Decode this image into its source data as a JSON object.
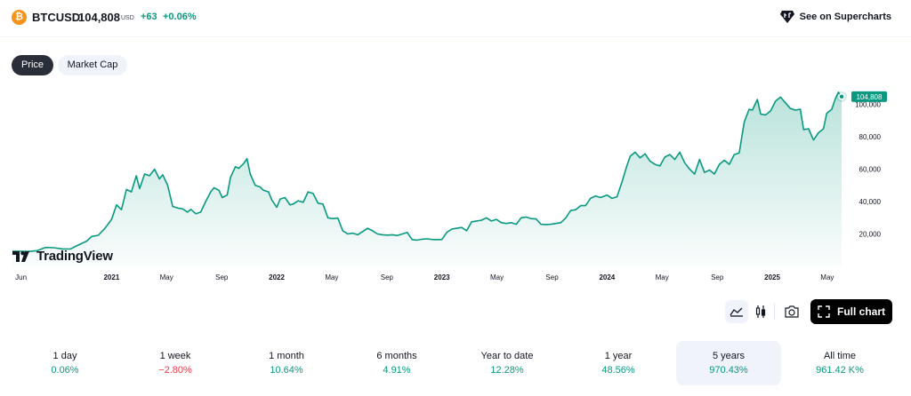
{
  "header": {
    "symbol": "BTCUSD",
    "price": "104,808",
    "currency": "USD",
    "change": "+63",
    "change_pct": "+0.06%",
    "supercharts": "See on Supercharts"
  },
  "tabs": [
    {
      "label": "Price",
      "active": true
    },
    {
      "label": "Market Cap",
      "active": false
    }
  ],
  "brand": {
    "text": "TradingView"
  },
  "toolbar": {
    "full_chart": "Full chart"
  },
  "colors": {
    "line": "#089981",
    "positive": "#089981",
    "negative": "#f23645",
    "brand_orange": "#f7931a"
  },
  "periods": [
    {
      "label": "1 day",
      "value": "0.06%",
      "sign": "pos",
      "active": false
    },
    {
      "label": "1 week",
      "value": "−2.80%",
      "sign": "neg",
      "active": false
    },
    {
      "label": "1 month",
      "value": "10.64%",
      "sign": "pos",
      "active": false
    },
    {
      "label": "6 months",
      "value": "4.91%",
      "sign": "pos",
      "active": false
    },
    {
      "label": "Year to date",
      "value": "12.28%",
      "sign": "pos",
      "active": false
    },
    {
      "label": "1 year",
      "value": "48.56%",
      "sign": "pos",
      "active": false
    },
    {
      "label": "5 years",
      "value": "970.43%",
      "sign": "pos",
      "active": true
    },
    {
      "label": "All time",
      "value": "961.42 K%",
      "sign": "pos",
      "active": false
    }
  ],
  "chart_data": {
    "type": "area",
    "series": [
      {
        "name": "BTCUSD",
        "last_label": "104,808"
      }
    ],
    "x_ticks": [
      {
        "label": "Jun",
        "t": 2020.417,
        "bold": false
      },
      {
        "label": "2021",
        "t": 2021.0,
        "bold": true
      },
      {
        "label": "May",
        "t": 2021.333,
        "bold": false
      },
      {
        "label": "Sep",
        "t": 2021.667,
        "bold": false
      },
      {
        "label": "2022",
        "t": 2022.0,
        "bold": true
      },
      {
        "label": "May",
        "t": 2022.333,
        "bold": false
      },
      {
        "label": "Sep",
        "t": 2022.667,
        "bold": false
      },
      {
        "label": "2023",
        "t": 2023.0,
        "bold": true
      },
      {
        "label": "May",
        "t": 2023.333,
        "bold": false
      },
      {
        "label": "Sep",
        "t": 2023.667,
        "bold": false
      },
      {
        "label": "2024",
        "t": 2024.0,
        "bold": true
      },
      {
        "label": "May",
        "t": 2024.333,
        "bold": false
      },
      {
        "label": "Sep",
        "t": 2024.667,
        "bold": false
      },
      {
        "label": "2025",
        "t": 2025.0,
        "bold": true
      },
      {
        "label": "May",
        "t": 2025.333,
        "bold": false
      }
    ],
    "y_ticks": [
      {
        "label": "20,000",
        "v": 20000
      },
      {
        "label": "40,000",
        "v": 40000
      },
      {
        "label": "60,000",
        "v": 60000
      },
      {
        "label": "80,000",
        "v": 80000
      },
      {
        "label": "100,000",
        "v": 100000
      }
    ],
    "ylim": [
      0,
      108000
    ],
    "xlim": [
      2020.4,
      2025.42
    ],
    "points": [
      [
        2020.4,
        9400
      ],
      [
        2020.45,
        9300
      ],
      [
        2020.5,
        9200
      ],
      [
        2020.55,
        9700
      ],
      [
        2020.6,
        11700
      ],
      [
        2020.65,
        11500
      ],
      [
        2020.7,
        10800
      ],
      [
        2020.75,
        10700
      ],
      [
        2020.8,
        13200
      ],
      [
        2020.85,
        15600
      ],
      [
        2020.88,
        18500
      ],
      [
        2020.92,
        19200
      ],
      [
        2020.96,
        23500
      ],
      [
        2021.0,
        29000
      ],
      [
        2021.03,
        38000
      ],
      [
        2021.06,
        35000
      ],
      [
        2021.09,
        47500
      ],
      [
        2021.12,
        46000
      ],
      [
        2021.15,
        56000
      ],
      [
        2021.17,
        48000
      ],
      [
        2021.2,
        57000
      ],
      [
        2021.23,
        56000
      ],
      [
        2021.26,
        60000
      ],
      [
        2021.29,
        54000
      ],
      [
        2021.31,
        56500
      ],
      [
        2021.34,
        50000
      ],
      [
        2021.37,
        37000
      ],
      [
        2021.4,
        36000
      ],
      [
        2021.43,
        35500
      ],
      [
        2021.46,
        33500
      ],
      [
        2021.48,
        35200
      ],
      [
        2021.51,
        32500
      ],
      [
        2021.54,
        33500
      ],
      [
        2021.57,
        40000
      ],
      [
        2021.6,
        46000
      ],
      [
        2021.62,
        48500
      ],
      [
        2021.65,
        47000
      ],
      [
        2021.67,
        42500
      ],
      [
        2021.7,
        44000
      ],
      [
        2021.72,
        55000
      ],
      [
        2021.75,
        61500
      ],
      [
        2021.77,
        60500
      ],
      [
        2021.8,
        63500
      ],
      [
        2021.82,
        66500
      ],
      [
        2021.84,
        57000
      ],
      [
        2021.87,
        50000
      ],
      [
        2021.9,
        49000
      ],
      [
        2021.92,
        47000
      ],
      [
        2021.95,
        46000
      ],
      [
        2021.97,
        41000
      ],
      [
        2022.0,
        36500
      ],
      [
        2022.02,
        41500
      ],
      [
        2022.05,
        42500
      ],
      [
        2022.08,
        38000
      ],
      [
        2022.1,
        38500
      ],
      [
        2022.13,
        40500
      ],
      [
        2022.16,
        39500
      ],
      [
        2022.19,
        46000
      ],
      [
        2022.22,
        45000
      ],
      [
        2022.25,
        39000
      ],
      [
        2022.28,
        38500
      ],
      [
        2022.31,
        30000
      ],
      [
        2022.34,
        29500
      ],
      [
        2022.37,
        29800
      ],
      [
        2022.4,
        22000
      ],
      [
        2022.43,
        20000
      ],
      [
        2022.46,
        20500
      ],
      [
        2022.49,
        19500
      ],
      [
        2022.52,
        21500
      ],
      [
        2022.55,
        23500
      ],
      [
        2022.58,
        22000
      ],
      [
        2022.61,
        20000
      ],
      [
        2022.64,
        19500
      ],
      [
        2022.67,
        19300
      ],
      [
        2022.7,
        19500
      ],
      [
        2022.73,
        19000
      ],
      [
        2022.76,
        20000
      ],
      [
        2022.79,
        21000
      ],
      [
        2022.82,
        16500
      ],
      [
        2022.85,
        16200
      ],
      [
        2022.88,
        16800
      ],
      [
        2022.91,
        17000
      ],
      [
        2022.94,
        16600
      ],
      [
        2022.97,
        16500
      ],
      [
        2023.0,
        16600
      ],
      [
        2023.03,
        21000
      ],
      [
        2023.06,
        23000
      ],
      [
        2023.09,
        23500
      ],
      [
        2023.12,
        24000
      ],
      [
        2023.15,
        22000
      ],
      [
        2023.18,
        27500
      ],
      [
        2023.21,
        28000
      ],
      [
        2023.24,
        28500
      ],
      [
        2023.27,
        30000
      ],
      [
        2023.3,
        28000
      ],
      [
        2023.33,
        29000
      ],
      [
        2023.36,
        27000
      ],
      [
        2023.39,
        26500
      ],
      [
        2023.42,
        27000
      ],
      [
        2023.45,
        26000
      ],
      [
        2023.48,
        30000
      ],
      [
        2023.51,
        30500
      ],
      [
        2023.54,
        29500
      ],
      [
        2023.57,
        29300
      ],
      [
        2023.6,
        26000
      ],
      [
        2023.63,
        25800
      ],
      [
        2023.66,
        26000
      ],
      [
        2023.69,
        26500
      ],
      [
        2023.72,
        27000
      ],
      [
        2023.75,
        30000
      ],
      [
        2023.78,
        34500
      ],
      [
        2023.81,
        35000
      ],
      [
        2023.84,
        37500
      ],
      [
        2023.87,
        37500
      ],
      [
        2023.9,
        42000
      ],
      [
        2023.93,
        43500
      ],
      [
        2023.96,
        42500
      ],
      [
        2024.0,
        44000
      ],
      [
        2024.03,
        42000
      ],
      [
        2024.06,
        43000
      ],
      [
        2024.09,
        52000
      ],
      [
        2024.12,
        62000
      ],
      [
        2024.14,
        68000
      ],
      [
        2024.17,
        70500
      ],
      [
        2024.2,
        67000
      ],
      [
        2024.23,
        69500
      ],
      [
        2024.26,
        65000
      ],
      [
        2024.29,
        63000
      ],
      [
        2024.32,
        62000
      ],
      [
        2024.35,
        67500
      ],
      [
        2024.38,
        69000
      ],
      [
        2024.41,
        66000
      ],
      [
        2024.44,
        70500
      ],
      [
        2024.47,
        64000
      ],
      [
        2024.5,
        60000
      ],
      [
        2024.53,
        57000
      ],
      [
        2024.56,
        66000
      ],
      [
        2024.59,
        58000
      ],
      [
        2024.62,
        59500
      ],
      [
        2024.65,
        57000
      ],
      [
        2024.68,
        63000
      ],
      [
        2024.71,
        65500
      ],
      [
        2024.74,
        63000
      ],
      [
        2024.77,
        69000
      ],
      [
        2024.8,
        70000
      ],
      [
        2024.83,
        89000
      ],
      [
        2024.86,
        97000
      ],
      [
        2024.88,
        96500
      ],
      [
        2024.91,
        103000
      ],
      [
        2024.93,
        94000
      ],
      [
        2024.96,
        93500
      ],
      [
        2024.99,
        96000
      ],
      [
        2025.02,
        102000
      ],
      [
        2025.05,
        104500
      ],
      [
        2025.08,
        101000
      ],
      [
        2025.11,
        97500
      ],
      [
        2025.14,
        96500
      ],
      [
        2025.17,
        97000
      ],
      [
        2025.19,
        84500
      ],
      [
        2025.22,
        85000
      ],
      [
        2025.25,
        78000
      ],
      [
        2025.28,
        82500
      ],
      [
        2025.31,
        85000
      ],
      [
        2025.33,
        94500
      ],
      [
        2025.36,
        97000
      ],
      [
        2025.38,
        103000
      ],
      [
        2025.4,
        107500
      ],
      [
        2025.42,
        104808
      ]
    ]
  }
}
